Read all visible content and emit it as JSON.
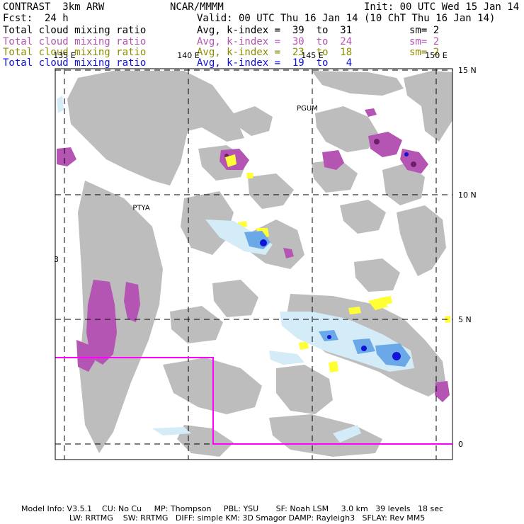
{
  "header": {
    "title": "CONTRAST  3km ARW",
    "org": "NCAR/MMMM",
    "init": "Init: 00 UTC Wed 15 Jan 14",
    "fcst": "Fcst:  24 h",
    "valid": "Valid: 00 UTC Thu 16 Jan 14 (10 ChT Thu 16 Jan 14)",
    "fields": [
      {
        "name": "Total cloud mixing ratio",
        "stat": "Avg, k-index =  39  to  31",
        "sm": "sm= 2",
        "color": "#000000"
      },
      {
        "name": "Total cloud mixing ratio",
        "stat": "Avg, k-index =  30  to  24",
        "sm": "sm= 2",
        "color": "#b455b4"
      },
      {
        "name": "Total cloud mixing ratio",
        "stat": "Avg, k-index =  23  to  18",
        "sm": "sm= 2",
        "color": "#8c8c00"
      },
      {
        "name": "Total cloud mixing ratio",
        "stat": "Avg, k-index =  19  to   4",
        "sm": "",
        "color": "#1010e0"
      }
    ]
  },
  "map": {
    "lon_labels": [
      {
        "text": "135 E",
        "lon": 135
      },
      {
        "text": "140 E",
        "lon": 140
      },
      {
        "text": "145 E",
        "lon": 145
      },
      {
        "text": "150 E",
        "lon": 150
      }
    ],
    "lat_labels": [
      {
        "text": "15 N",
        "lat": 15
      },
      {
        "text": "10 N",
        "lat": 10
      },
      {
        "text": "5 N",
        "lat": 5
      },
      {
        "text": "0",
        "lat": 0
      }
    ],
    "stations": [
      {
        "text": "PGUM",
        "lon": 144.8,
        "lat": 13.5
      },
      {
        "text": "PTYA",
        "lon": 138.1,
        "lat": 9.5
      }
    ],
    "edge_mark": "3",
    "colors": {
      "grey": "#bdbdbd",
      "violet": "#b455b4",
      "dark_violet": "#6a1f6a",
      "yellow": "#ffff33",
      "light_blue": "#d4ecf8",
      "mid_blue": "#6aa8e8",
      "dark_blue": "#1212d8",
      "box": "#ff00ff"
    }
  },
  "footer": {
    "line1": "Model Info: V3.5.1    CU: No Cu     MP: Thompson     PBL: YSU       SF: Noah LSM     3.0 km   39 levels   18 sec",
    "line2": "LW: RRTMG    SW: RRTMG   DIFF: simple KM: 3D Smagor DAMP: Rayleigh3   SFLAY: Rev MM5"
  }
}
